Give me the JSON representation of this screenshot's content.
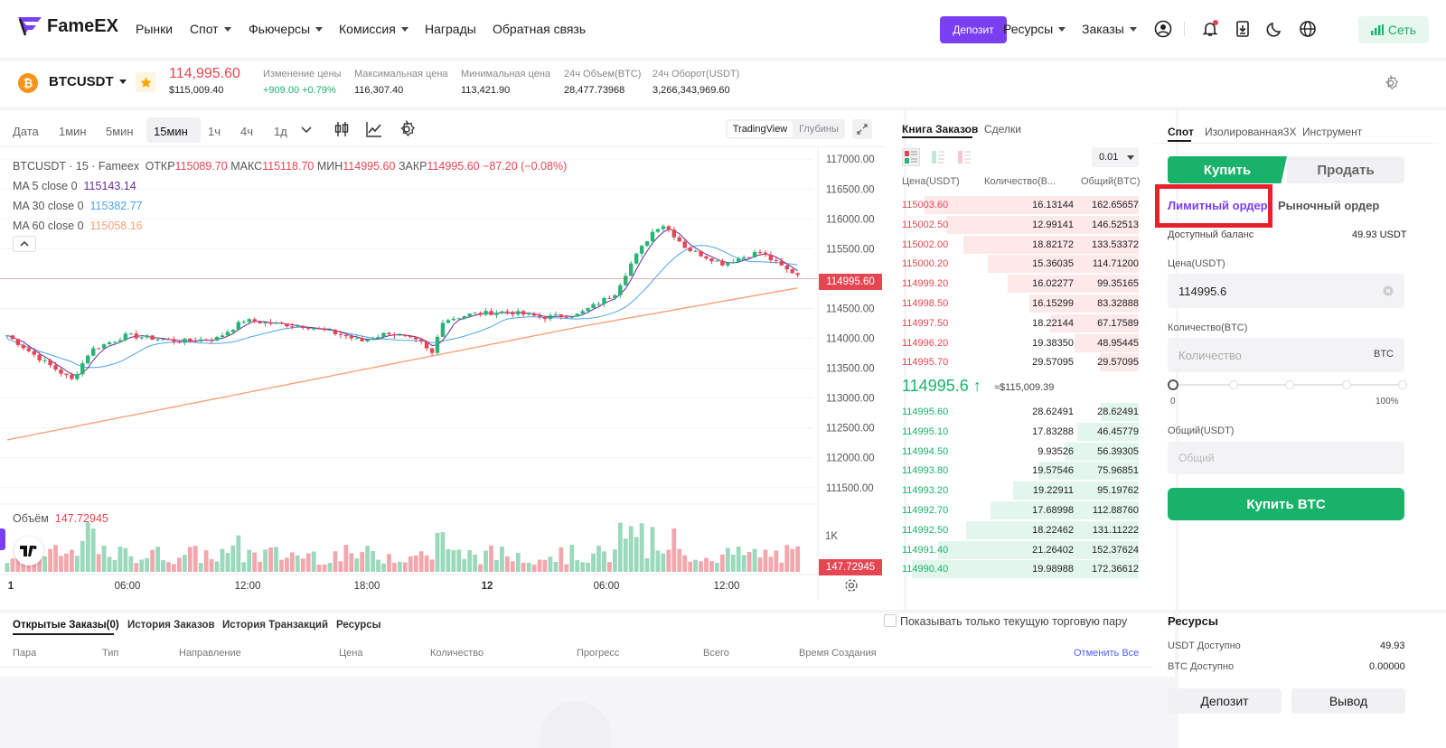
{
  "nav": {
    "logo": "FameEX",
    "items": [
      {
        "label": "Рынки",
        "dropdown": false
      },
      {
        "label": "Спот",
        "dropdown": true
      },
      {
        "label": "Фьючерсы",
        "dropdown": true
      },
      {
        "label": "Комиссия",
        "dropdown": true
      },
      {
        "label": "Награды",
        "dropdown": false
      },
      {
        "label": "Обратная связь",
        "dropdown": false
      }
    ],
    "deposit": "Депозит",
    "resources": "Ресурсы",
    "orders": "Заказы",
    "network": "Сеть",
    "accent": "#7b3ff2"
  },
  "ticker": {
    "pair": "BTCUSDT",
    "price": "114,995.60",
    "price_usd": "$115,009.40",
    "stats": [
      {
        "label": "Изменение цены",
        "value": "+909.00 +0.79%"
      },
      {
        "label": "Максимальная цена",
        "value": "116,307.40"
      },
      {
        "label": "Минимальная цена",
        "value": "113,421.90"
      },
      {
        "label": "24ч Объем(BTC)",
        "value": "28,477.73968"
      },
      {
        "label": "24ч Оборот(USDT)",
        "value": "3,266,343,969.60"
      }
    ]
  },
  "chart_toolbar": {
    "timeframes": [
      "Дата",
      "1мин",
      "5мин",
      "15мин",
      "1ч",
      "4ч",
      "1д"
    ],
    "active": "15мин",
    "view_tv": "TradingView",
    "view_depth": "Глубины"
  },
  "chart_legend": {
    "title": "BTCUSDT · 15 · Fameex",
    "open_l": "ОТКР",
    "open": "115089.70",
    "high_l": "МАКС",
    "high": "115118.70",
    "low_l": "МИН",
    "low": "114995.60",
    "close_l": "ЗАКР",
    "close": "114995.60",
    "change": "−87.20 (−0.08%)",
    "ma5_l": "MA 5 close 0",
    "ma5": "115143.14",
    "ma30_l": "MA 30 close 0",
    "ma30": "115382.77",
    "ma60_l": "MA 60 close 0",
    "ma60": "115058.16",
    "volume_l": "Объём",
    "volume": "147.72945",
    "last_price_tag": "114995.60",
    "volume_tag": "147.72945",
    "vol_axis": "1K"
  },
  "chart_data": {
    "type": "candlestick",
    "y_ticks": [
      "117000.00",
      "116500.00",
      "116000.00",
      "115500.00",
      "115000.00",
      "114500.00",
      "114000.00",
      "113500.00",
      "113000.00",
      "112500.00",
      "112000.00",
      "111500.00"
    ],
    "x_ticks": [
      "1",
      "06:00",
      "12:00",
      "18:00",
      "12",
      "06:00",
      "12:00"
    ],
    "ylim": [
      111300,
      117200
    ],
    "colors": {
      "up": "#26b477",
      "down": "#e64552",
      "ma5": "#6a2a9c",
      "ma30": "#4da3e6",
      "ma60": "#f7a07a"
    }
  },
  "orderbook": {
    "tab_book": "Книга Заказов",
    "tab_trades": "Сделки",
    "precision": "0.01",
    "col_price": "Цена(USDT)",
    "col_qty": "Количество(В...",
    "col_total": "Общий(BTC)",
    "asks": [
      [
        "115003.60",
        "16.13144",
        "162.65657"
      ],
      [
        "115002.50",
        "12.99141",
        "146.52513"
      ],
      [
        "115002.00",
        "18.82172",
        "133.53372"
      ],
      [
        "115000.20",
        "15.36035",
        "114.71200"
      ],
      [
        "114999.20",
        "16.02277",
        "99.35165"
      ],
      [
        "114998.50",
        "16.15299",
        "83.32888"
      ],
      [
        "114997.50",
        "18.22144",
        "67.17589"
      ],
      [
        "114996.20",
        "19.38350",
        "48.95445"
      ],
      [
        "114995.70",
        "29.57095",
        "29.57095"
      ]
    ],
    "mid_price": "114995.6 ↑",
    "mid_usd": "≈$115,009.39",
    "bids": [
      [
        "114995.60",
        "28.62491",
        "28.62491"
      ],
      [
        "114995.10",
        "17.83288",
        "46.45779"
      ],
      [
        "114994.50",
        "9.93526",
        "56.39305"
      ],
      [
        "114993.80",
        "19.57546",
        "75.96851"
      ],
      [
        "114993.20",
        "19.22911",
        "95.19762"
      ],
      [
        "114992.70",
        "17.68998",
        "112.88760"
      ],
      [
        "114992.50",
        "18.22462",
        "131.11222"
      ],
      [
        "114991.40",
        "21.26402",
        "152.37624"
      ],
      [
        "114990.40",
        "19.98988",
        "172.36612"
      ]
    ]
  },
  "trade": {
    "tabs": [
      "Спот",
      "Изолированная3X",
      "Инструмент"
    ],
    "buy": "Купить",
    "sell": "Продать",
    "limit": "Лимитный ордер",
    "market": "Рыночный ордер",
    "balance_l": "Доступный баланс",
    "balance": "49.93 USDT",
    "price_l": "Цена(USDT)",
    "price": "114995.6",
    "qty_l": "Количество(BTC)",
    "qty_ph": "Количество",
    "qty_unit": "BTC",
    "slider_min": "0",
    "slider_max": "100%",
    "slider_value": 0,
    "total_l": "Общий(USDT)",
    "total_ph": "Общий",
    "submit": "Купить BTC"
  },
  "orders": {
    "tabs": [
      "Открытые Заказы(0)",
      "История Заказов",
      "История Транзакций",
      "Ресурсы"
    ],
    "only_pair": "Показывать только текущую торговую пару",
    "cols": [
      "Пара",
      "Тип",
      "Направление",
      "Цена",
      "Количество",
      "Прогресс",
      "Всего",
      "Время Создания"
    ],
    "cancel_all": "Отменить Все"
  },
  "resources": {
    "title": "Ресурсы",
    "usdt_l": "USDT Доступно",
    "usdt": "49.93",
    "btc_l": "BTC Доступно",
    "btc": "0.00000",
    "deposit": "Депозит",
    "withdraw": "Вывод"
  }
}
